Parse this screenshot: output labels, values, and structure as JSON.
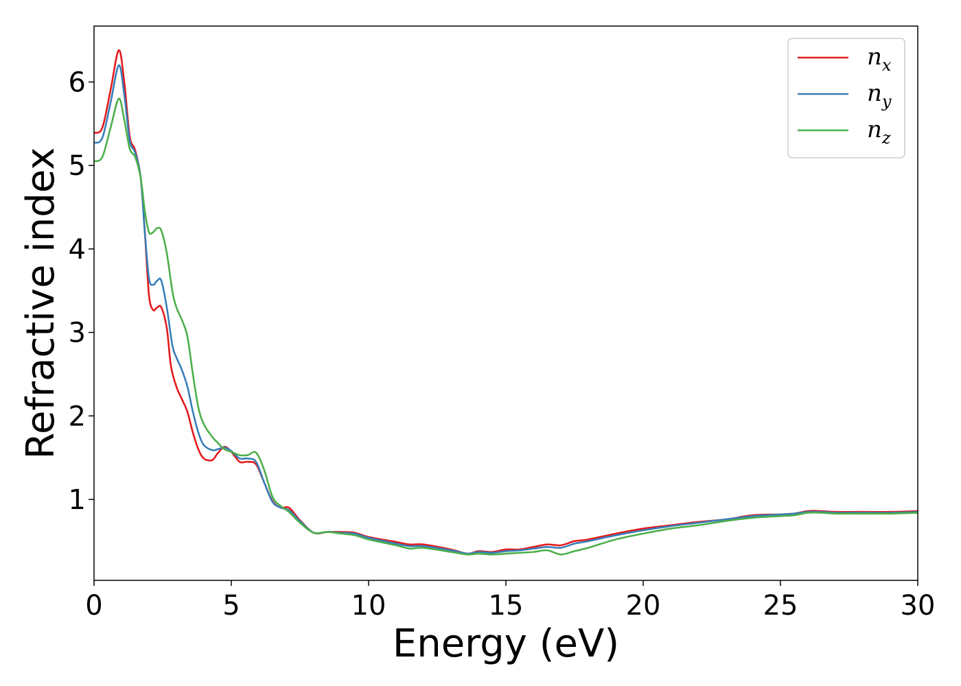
{
  "chart_data": {
    "type": "line",
    "title": "",
    "xlabel": "Energy (eV)",
    "ylabel": "Refractive index",
    "xlim": [
      0,
      30
    ],
    "ylim": [
      0.03,
      6.67
    ],
    "xticks": [
      0,
      5,
      10,
      15,
      20,
      25,
      30
    ],
    "yticks": [
      1,
      2,
      3,
      4,
      5,
      6
    ],
    "grid": false,
    "legend_position": "top-right",
    "series": [
      {
        "name": "n",
        "subscript": "x",
        "color": "#e41a1c",
        "points": [
          [
            0,
            5.39
          ],
          [
            0.3,
            5.45
          ],
          [
            0.6,
            5.9
          ],
          [
            0.9,
            6.38
          ],
          [
            1.1,
            6.0
          ],
          [
            1.3,
            5.35
          ],
          [
            1.5,
            5.18
          ],
          [
            1.7,
            4.85
          ],
          [
            1.85,
            4.2
          ],
          [
            2.0,
            3.45
          ],
          [
            2.15,
            3.27
          ],
          [
            2.3,
            3.3
          ],
          [
            2.45,
            3.3
          ],
          [
            2.65,
            3.05
          ],
          [
            2.8,
            2.6
          ],
          [
            3.0,
            2.35
          ],
          [
            3.2,
            2.2
          ],
          [
            3.4,
            2.05
          ],
          [
            3.6,
            1.8
          ],
          [
            3.8,
            1.6
          ],
          [
            4.0,
            1.49
          ],
          [
            4.3,
            1.47
          ],
          [
            4.5,
            1.55
          ],
          [
            4.75,
            1.63
          ],
          [
            5.0,
            1.57
          ],
          [
            5.3,
            1.45
          ],
          [
            5.6,
            1.45
          ],
          [
            5.9,
            1.42
          ],
          [
            6.2,
            1.2
          ],
          [
            6.5,
            0.98
          ],
          [
            6.8,
            0.9
          ],
          [
            7.1,
            0.9
          ],
          [
            7.5,
            0.75
          ],
          [
            8.0,
            0.6
          ],
          [
            8.5,
            0.61
          ],
          [
            9.0,
            0.61
          ],
          [
            9.5,
            0.6
          ],
          [
            10.0,
            0.55
          ],
          [
            11.0,
            0.49
          ],
          [
            11.5,
            0.46
          ],
          [
            12.0,
            0.46
          ],
          [
            13.0,
            0.4
          ],
          [
            13.6,
            0.35
          ],
          [
            14.0,
            0.38
          ],
          [
            14.5,
            0.37
          ],
          [
            15.0,
            0.4
          ],
          [
            15.5,
            0.4
          ],
          [
            16.0,
            0.43
          ],
          [
            16.5,
            0.46
          ],
          [
            17.0,
            0.45
          ],
          [
            17.5,
            0.5
          ],
          [
            18.0,
            0.52
          ],
          [
            19.0,
            0.59
          ],
          [
            20.0,
            0.65
          ],
          [
            21.0,
            0.69
          ],
          [
            22.0,
            0.73
          ],
          [
            23.0,
            0.76
          ],
          [
            24.0,
            0.81
          ],
          [
            25.0,
            0.82
          ],
          [
            25.5,
            0.83
          ],
          [
            26.0,
            0.86
          ],
          [
            26.5,
            0.86
          ],
          [
            27.0,
            0.85
          ],
          [
            28.0,
            0.85
          ],
          [
            29.0,
            0.85
          ],
          [
            30.0,
            0.86
          ]
        ]
      },
      {
        "name": "n",
        "subscript": "y",
        "color": "#377eb8",
        "points": [
          [
            0,
            5.27
          ],
          [
            0.3,
            5.33
          ],
          [
            0.6,
            5.75
          ],
          [
            0.9,
            6.2
          ],
          [
            1.1,
            5.85
          ],
          [
            1.3,
            5.3
          ],
          [
            1.5,
            5.15
          ],
          [
            1.7,
            4.85
          ],
          [
            1.85,
            4.2
          ],
          [
            2.0,
            3.65
          ],
          [
            2.15,
            3.57
          ],
          [
            2.3,
            3.62
          ],
          [
            2.45,
            3.62
          ],
          [
            2.65,
            3.3
          ],
          [
            2.85,
            2.85
          ],
          [
            3.0,
            2.7
          ],
          [
            3.2,
            2.55
          ],
          [
            3.4,
            2.35
          ],
          [
            3.6,
            2.05
          ],
          [
            3.8,
            1.8
          ],
          [
            4.0,
            1.65
          ],
          [
            4.3,
            1.59
          ],
          [
            4.5,
            1.6
          ],
          [
            4.75,
            1.62
          ],
          [
            5.0,
            1.58
          ],
          [
            5.3,
            1.49
          ],
          [
            5.6,
            1.49
          ],
          [
            5.9,
            1.45
          ],
          [
            6.2,
            1.2
          ],
          [
            6.5,
            0.97
          ],
          [
            6.8,
            0.9
          ],
          [
            7.1,
            0.87
          ],
          [
            7.5,
            0.74
          ],
          [
            8.0,
            0.6
          ],
          [
            8.5,
            0.61
          ],
          [
            9.0,
            0.6
          ],
          [
            9.5,
            0.59
          ],
          [
            10.0,
            0.54
          ],
          [
            11.0,
            0.47
          ],
          [
            11.5,
            0.44
          ],
          [
            12.0,
            0.44
          ],
          [
            13.0,
            0.39
          ],
          [
            13.6,
            0.35
          ],
          [
            14.0,
            0.37
          ],
          [
            14.5,
            0.36
          ],
          [
            15.0,
            0.38
          ],
          [
            15.5,
            0.39
          ],
          [
            16.0,
            0.41
          ],
          [
            16.5,
            0.43
          ],
          [
            17.0,
            0.42
          ],
          [
            17.5,
            0.47
          ],
          [
            18.0,
            0.5
          ],
          [
            19.0,
            0.57
          ],
          [
            20.0,
            0.63
          ],
          [
            21.0,
            0.68
          ],
          [
            22.0,
            0.72
          ],
          [
            23.0,
            0.76
          ],
          [
            24.0,
            0.8
          ],
          [
            25.0,
            0.82
          ],
          [
            25.5,
            0.83
          ],
          [
            26.0,
            0.85
          ],
          [
            26.5,
            0.85
          ],
          [
            27.0,
            0.84
          ],
          [
            28.0,
            0.84
          ],
          [
            29.0,
            0.84
          ],
          [
            30.0,
            0.85
          ]
        ]
      },
      {
        "name": "n",
        "subscript": "z",
        "color": "#4daf4a",
        "points": [
          [
            0,
            5.05
          ],
          [
            0.3,
            5.1
          ],
          [
            0.6,
            5.45
          ],
          [
            0.9,
            5.8
          ],
          [
            1.1,
            5.55
          ],
          [
            1.3,
            5.2
          ],
          [
            1.5,
            5.1
          ],
          [
            1.7,
            4.85
          ],
          [
            1.85,
            4.45
          ],
          [
            2.0,
            4.2
          ],
          [
            2.15,
            4.2
          ],
          [
            2.3,
            4.25
          ],
          [
            2.45,
            4.22
          ],
          [
            2.65,
            3.95
          ],
          [
            2.85,
            3.5
          ],
          [
            3.0,
            3.3
          ],
          [
            3.2,
            3.15
          ],
          [
            3.4,
            2.95
          ],
          [
            3.6,
            2.5
          ],
          [
            3.8,
            2.1
          ],
          [
            4.0,
            1.9
          ],
          [
            4.3,
            1.75
          ],
          [
            4.5,
            1.68
          ],
          [
            4.75,
            1.6
          ],
          [
            5.0,
            1.57
          ],
          [
            5.3,
            1.53
          ],
          [
            5.6,
            1.53
          ],
          [
            5.9,
            1.56
          ],
          [
            6.2,
            1.35
          ],
          [
            6.5,
            1.03
          ],
          [
            6.8,
            0.92
          ],
          [
            7.1,
            0.85
          ],
          [
            7.5,
            0.72
          ],
          [
            8.0,
            0.6
          ],
          [
            8.5,
            0.61
          ],
          [
            9.0,
            0.59
          ],
          [
            9.5,
            0.57
          ],
          [
            10.0,
            0.52
          ],
          [
            11.0,
            0.45
          ],
          [
            11.5,
            0.41
          ],
          [
            12.0,
            0.42
          ],
          [
            13.0,
            0.37
          ],
          [
            13.6,
            0.34
          ],
          [
            14.0,
            0.35
          ],
          [
            14.5,
            0.34
          ],
          [
            15.0,
            0.35
          ],
          [
            15.5,
            0.36
          ],
          [
            16.0,
            0.37
          ],
          [
            16.5,
            0.39
          ],
          [
            17.0,
            0.34
          ],
          [
            17.5,
            0.38
          ],
          [
            18.0,
            0.42
          ],
          [
            19.0,
            0.52
          ],
          [
            20.0,
            0.59
          ],
          [
            21.0,
            0.65
          ],
          [
            22.0,
            0.69
          ],
          [
            23.0,
            0.74
          ],
          [
            24.0,
            0.78
          ],
          [
            25.0,
            0.8
          ],
          [
            25.5,
            0.81
          ],
          [
            26.0,
            0.84
          ],
          [
            26.5,
            0.84
          ],
          [
            27.0,
            0.83
          ],
          [
            28.0,
            0.83
          ],
          [
            29.0,
            0.83
          ],
          [
            30.0,
            0.84
          ]
        ]
      }
    ]
  }
}
